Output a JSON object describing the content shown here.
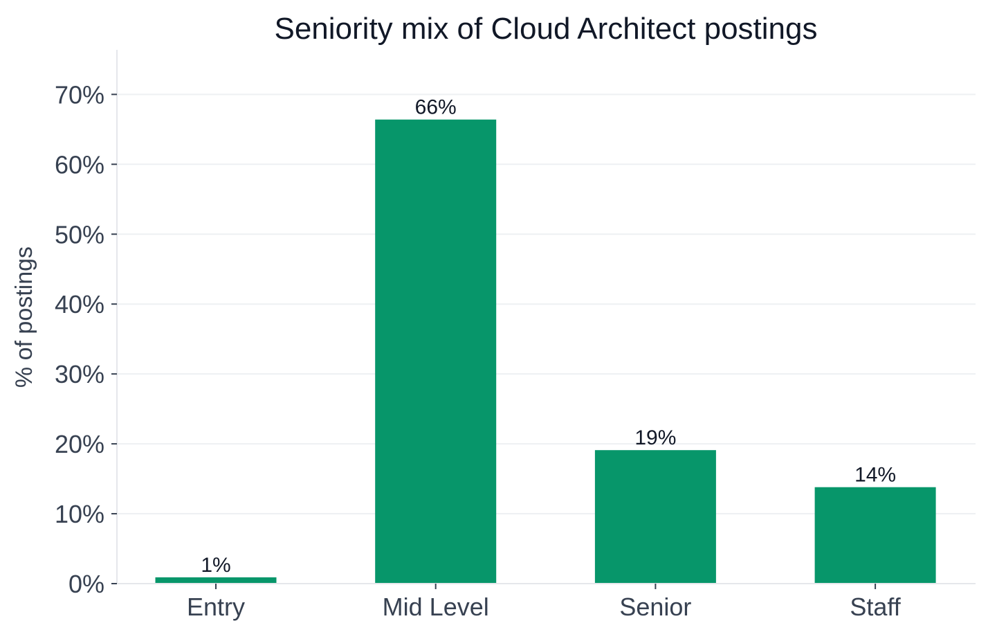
{
  "chart_data": {
    "type": "bar",
    "title": "Seniority mix of Cloud Architect postings",
    "xlabel": "",
    "ylabel": "% of postings",
    "categories": [
      "Entry",
      "Mid Level",
      "Senior",
      "Staff"
    ],
    "values": [
      0.9,
      66.4,
      19.1,
      13.8
    ],
    "data_labels": [
      "1%",
      "66%",
      "19%",
      "14%"
    ],
    "ylim": [
      0,
      76
    ],
    "yticks": [
      0,
      10,
      20,
      30,
      40,
      50,
      60,
      70
    ],
    "ytick_labels": [
      "0%",
      "10%",
      "20%",
      "30%",
      "40%",
      "50%",
      "60%",
      "70%"
    ],
    "grid": "horizontal",
    "legend": "none",
    "bar_color": "#07966a"
  }
}
